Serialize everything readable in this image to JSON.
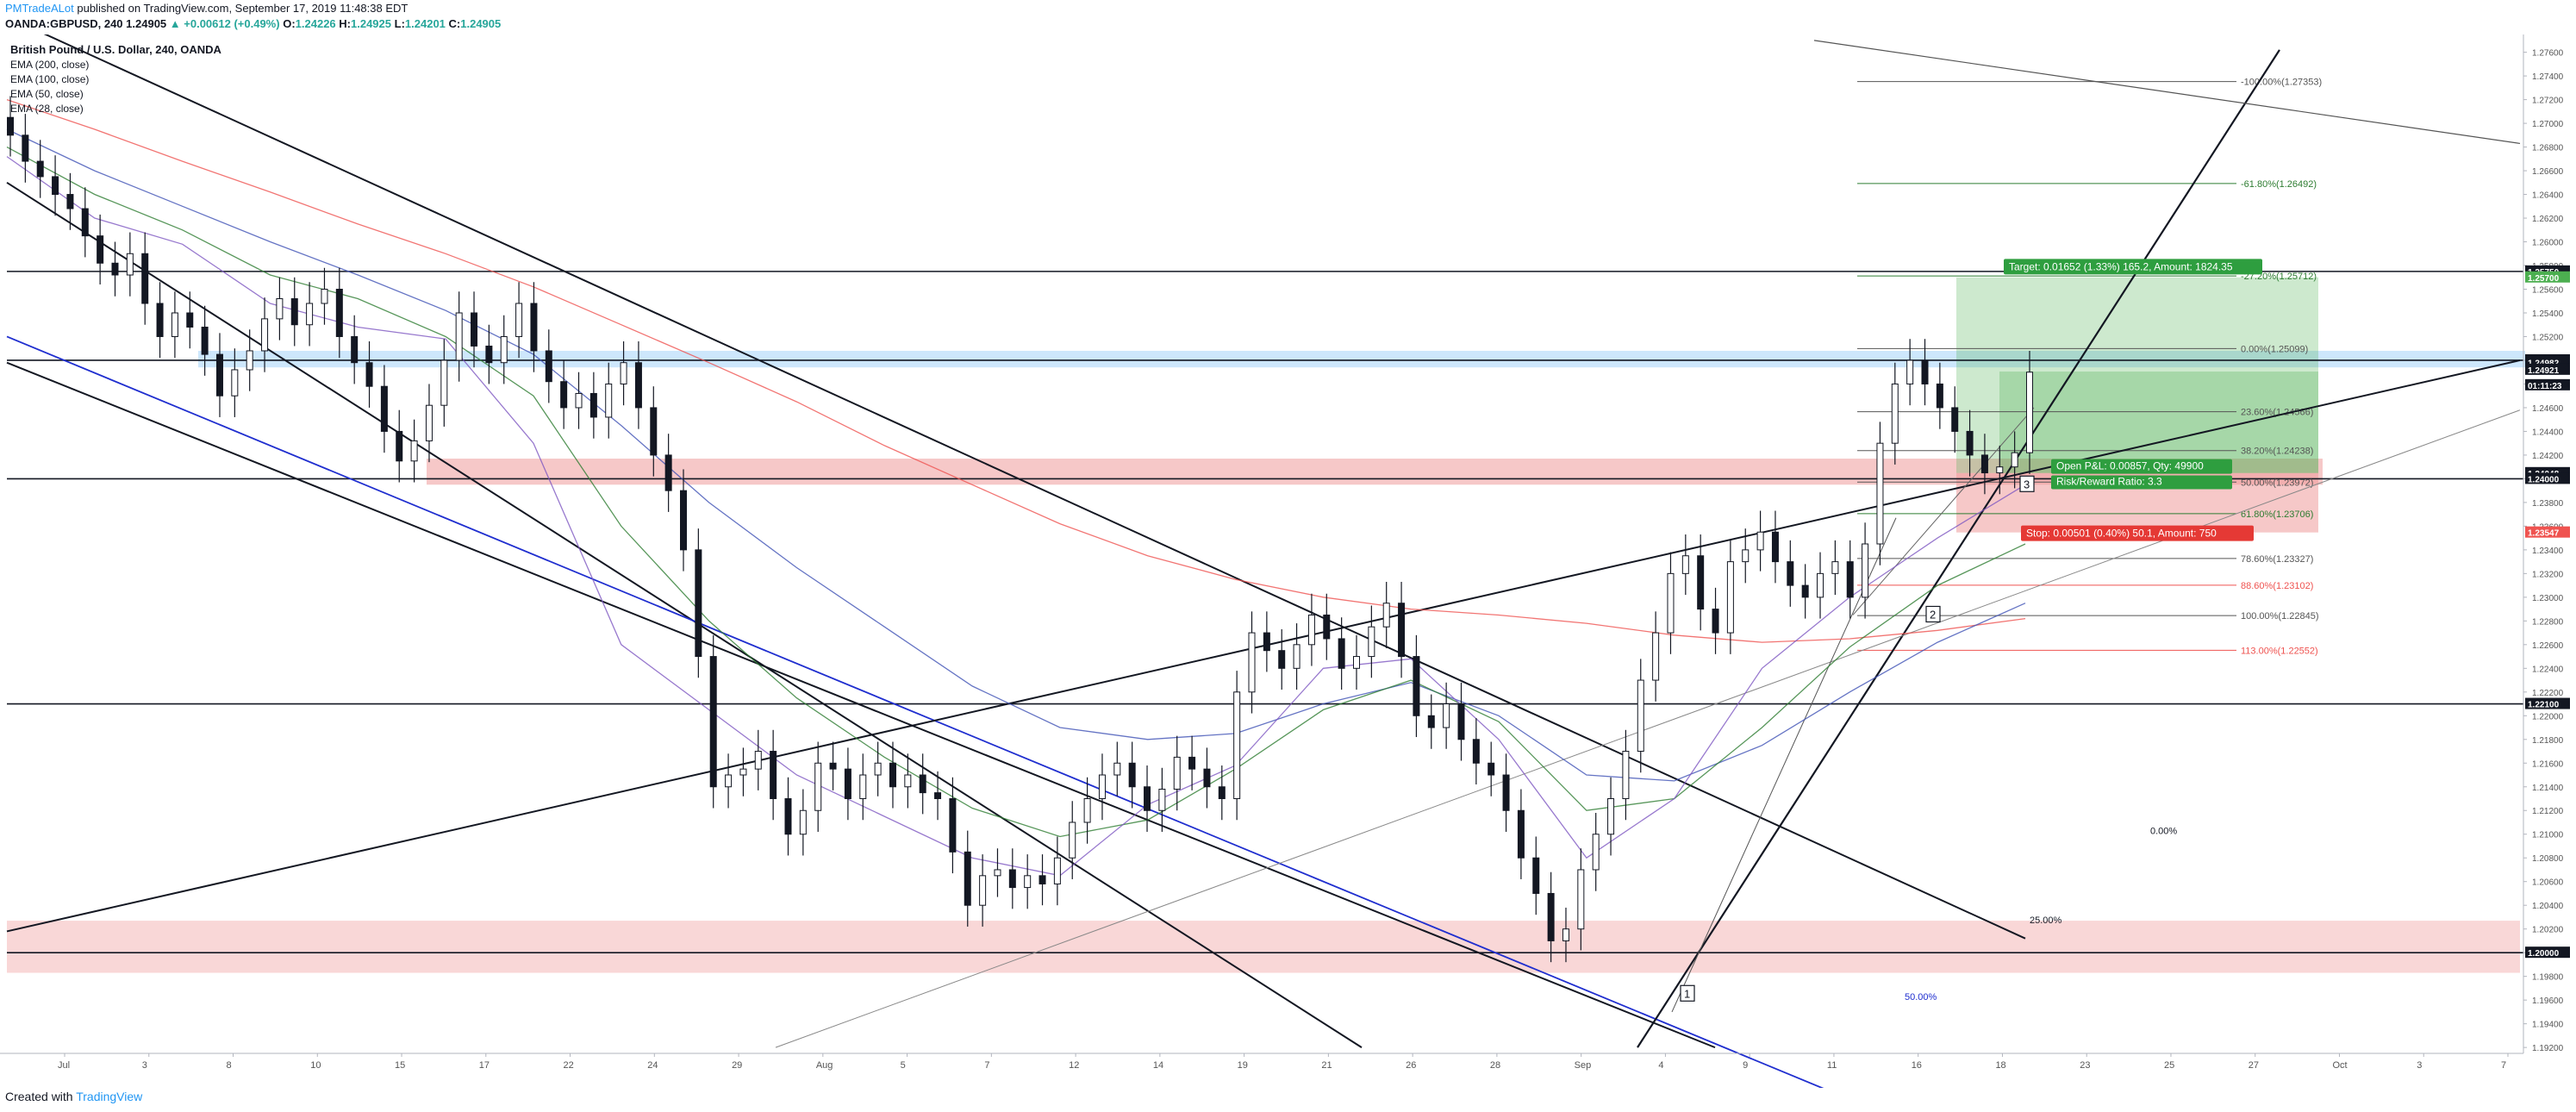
{
  "header": {
    "author": "PMTradeALot",
    "published": "published on TradingView.com, September 17, 2019 11:48:38 EDT",
    "symbol": "OANDA:GBPUSD, 240",
    "price": "1.24905",
    "change": "▲ +0.00612 (+0.49%)",
    "ohlc_o_label": "O:",
    "ohlc_o": "1.24226",
    "ohlc_h_label": "H:",
    "ohlc_h": "1.24925",
    "ohlc_l_label": "L:",
    "ohlc_l": "1.24201",
    "ohlc_c_label": "C:",
    "ohlc_c": "1.24905"
  },
  "footer": {
    "created": "Created with",
    "brand": "TradingView"
  },
  "colors": {
    "up": "#26a69a",
    "down": "#ef5350",
    "brand": "#2196f3",
    "ema200": "#ef5350",
    "ema100": "#3f51b5",
    "ema50": "#2e7d32",
    "ema28": "#7e57c2",
    "target_zone": "#4caf50",
    "stop_zone": "#ef9a9a",
    "resistance_band": "#90caf9",
    "support_band": "#ef9a9a"
  },
  "chart_data": {
    "type": "candlestick",
    "title": "British Pound / U.S. Dollar, 240, OANDA",
    "legend": [
      "EMA (200, close)",
      "EMA (100, close)",
      "EMA (50, close)",
      "EMA (28, close)"
    ],
    "x_ticks": [
      "Jul",
      "3",
      "8",
      "10",
      "15",
      "17",
      "22",
      "24",
      "29",
      "Aug",
      "5",
      "7",
      "12",
      "14",
      "19",
      "21",
      "26",
      "28",
      "Sep",
      "4",
      "9",
      "11",
      "16",
      "18",
      "23",
      "25",
      "27",
      "Oct",
      "3",
      "7"
    ],
    "y_ticks": [
      "1.27600",
      "1.27400",
      "1.27200",
      "1.27000",
      "1.26800",
      "1.26600",
      "1.26400",
      "1.26200",
      "1.26000",
      "1.25800",
      "1.25600",
      "1.25400",
      "1.25200",
      "1.25000",
      "1.24800",
      "1.24600",
      "1.24400",
      "1.24200",
      "1.24000",
      "1.23800",
      "1.23600",
      "1.23400",
      "1.23200",
      "1.23000",
      "1.22800",
      "1.22600",
      "1.22400",
      "1.22200",
      "1.22000",
      "1.21800",
      "1.21600",
      "1.21400",
      "1.21200",
      "1.21000",
      "1.20800",
      "1.20600",
      "1.20400",
      "1.20200",
      "1.20000",
      "1.19800",
      "1.19600",
      "1.19400",
      "1.19200"
    ],
    "ylim": [
      1.1915,
      1.2775
    ],
    "price_labels": [
      {
        "text": "1.25750",
        "price": 1.2575,
        "color": "#131722"
      },
      {
        "text": "1.25700",
        "price": 1.257,
        "color": "#4caf50"
      },
      {
        "text": "1.25000",
        "price": 1.25,
        "color": "#131722"
      },
      {
        "text": "1.24982",
        "price": 1.24982,
        "color": "#131722"
      },
      {
        "text": "1.24921",
        "price": 1.24921,
        "color": "#131722"
      },
      {
        "text": "01:11:23",
        "price": 1.2479,
        "color": "#131722"
      },
      {
        "text": "1.24048",
        "price": 1.24048,
        "color": "#131722"
      },
      {
        "text": "1.24000",
        "price": 1.24,
        "color": "#131722"
      },
      {
        "text": "1.23547",
        "price": 1.23547,
        "color": "#ef5350"
      },
      {
        "text": "1.22100",
        "price": 1.221,
        "color": "#131722"
      },
      {
        "text": "1.20000",
        "price": 1.2,
        "color": "#131722"
      }
    ],
    "fib_retracement": [
      {
        "label": "-100.00%(1.27353)",
        "price": 1.27353,
        "color": "#555555"
      },
      {
        "label": "-61.80%(1.26492)",
        "price": 1.26492,
        "color": "#2e7d32"
      },
      {
        "label": "-27.20%(1.25712)",
        "price": 1.25712,
        "color": "#2e7d32"
      },
      {
        "label": "0.00%(1.25099)",
        "price": 1.25099,
        "color": "#555555"
      },
      {
        "label": "23.60%(1.24566)",
        "price": 1.24566,
        "color": "#555555"
      },
      {
        "label": "38.20%(1.24238)",
        "price": 1.24238,
        "color": "#555555"
      },
      {
        "label": "50.00%(1.23972)",
        "price": 1.23972,
        "color": "#555555"
      },
      {
        "label": "61.80%(1.23706)",
        "price": 1.23706,
        "color": "#2e7d32"
      },
      {
        "label": "78.60%(1.23327)",
        "price": 1.23327,
        "color": "#555555"
      },
      {
        "label": "88.60%(1.23102)",
        "price": 1.23102,
        "color": "#ef5350"
      },
      {
        "label": "100.00%(1.22845)",
        "price": 1.22845,
        "color": "#555555"
      },
      {
        "label": "113.00%(1.22552)",
        "price": 1.22552,
        "color": "#ef5350"
      }
    ],
    "horizontal_levels": [
      1.2575,
      1.25,
      1.24,
      1.221,
      1.2
    ],
    "fan_labels": [
      "0.00%",
      "25.00%",
      "50.00%"
    ],
    "position": {
      "type": "long",
      "entry": 1.24048,
      "target": 1.257,
      "stop": 1.23547,
      "target_text": "Target: 0.01652 (1.33%) 165.2, Amount: 1824.35",
      "pnl_text": "Open P&L: 0.00857, Qty: 49900",
      "rr_text": "Risk/Reward Ratio: 3.3",
      "stop_text": "Stop: 0.00501 (0.40%) 50.1, Amount: 750"
    },
    "wave_labels": [
      "1",
      "2",
      "3"
    ],
    "close": [
      1.269,
      1.2668,
      1.2655,
      1.264,
      1.2628,
      1.2605,
      1.2582,
      1.2572,
      1.259,
      1.2548,
      1.252,
      1.254,
      1.2528,
      1.2505,
      1.247,
      1.2492,
      1.2508,
      1.2535,
      1.2552,
      1.253,
      1.2548,
      1.256,
      1.252,
      1.2498,
      1.2478,
      1.244,
      1.2415,
      1.2432,
      1.2462,
      1.25,
      1.254,
      1.2512,
      1.2498,
      1.252,
      1.2548,
      1.2508,
      1.2482,
      1.246,
      1.2472,
      1.2452,
      1.248,
      1.2498,
      1.246,
      1.242,
      1.239,
      1.234,
      1.225,
      1.214,
      1.215,
      1.2155,
      1.217,
      1.213,
      1.21,
      1.212,
      1.216,
      1.2155,
      1.213,
      1.215,
      1.216,
      1.214,
      1.215,
      1.2135,
      1.213,
      1.2085,
      1.204,
      1.2065,
      1.207,
      1.2055,
      1.2065,
      1.2058,
      1.208,
      1.211,
      1.213,
      1.215,
      1.216,
      1.214,
      1.212,
      1.2138,
      1.2165,
      1.2155,
      1.214,
      1.213,
      1.222,
      1.227,
      1.2255,
      1.224,
      1.226,
      1.2285,
      1.2265,
      1.224,
      1.225,
      1.2275,
      1.2295,
      1.225,
      1.22,
      1.219,
      1.221,
      1.218,
      1.216,
      1.215,
      1.212,
      1.208,
      1.205,
      1.201,
      1.202,
      1.207,
      1.21,
      1.213,
      1.217,
      1.223,
      1.227,
      1.232,
      1.2335,
      1.229,
      1.227,
      1.233,
      1.234,
      1.2355,
      1.233,
      1.231,
      1.23,
      1.232,
      1.233,
      1.23,
      1.2345,
      1.243,
      1.248,
      1.25,
      1.248,
      1.246,
      1.244,
      1.242,
      1.2405,
      1.241,
      1.2422,
      1.249
    ],
    "ema_200": [
      1.272,
      1.2695,
      1.2668,
      1.2642,
      1.2615,
      1.259,
      1.2562,
      1.253,
      1.2498,
      1.2465,
      1.2428,
      1.2395,
      1.2362,
      1.2335,
      1.2315,
      1.23,
      1.229,
      1.2285,
      1.2278,
      1.2268,
      1.2262,
      1.2265,
      1.2272,
      1.2282
    ],
    "ema_100": [
      1.2695,
      1.266,
      1.263,
      1.26,
      1.2572,
      1.2542,
      1.2505,
      1.2445,
      1.238,
      1.2325,
      1.2275,
      1.2225,
      1.219,
      1.218,
      1.2185,
      1.221,
      1.2228,
      1.22,
      1.215,
      1.2145,
      1.2175,
      1.222,
      1.2262,
      1.2295
    ],
    "ema_50": [
      1.268,
      1.264,
      1.261,
      1.2572,
      1.2552,
      1.252,
      1.247,
      1.236,
      1.228,
      1.2215,
      1.2165,
      1.2122,
      1.2098,
      1.2112,
      1.2155,
      1.2205,
      1.223,
      1.2195,
      1.212,
      1.213,
      1.219,
      1.2258,
      1.231,
      1.2345
    ],
    "ema_28": [
      1.2672,
      1.262,
      1.2598,
      1.2548,
      1.2528,
      1.2518,
      1.243,
      1.226,
      1.2205,
      1.215,
      1.2115,
      1.208,
      1.2065,
      1.2125,
      1.2158,
      1.224,
      1.2248,
      1.218,
      1.208,
      1.213,
      1.224,
      1.23,
      1.235,
      1.2395
    ]
  }
}
